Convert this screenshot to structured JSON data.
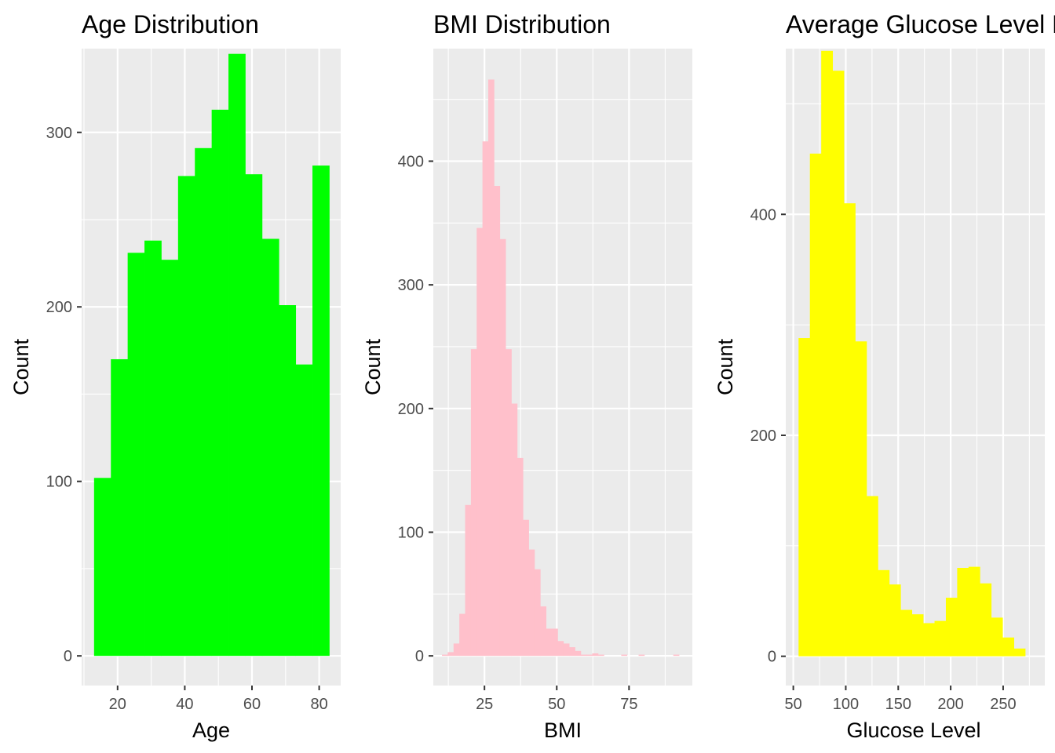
{
  "chart_data": [
    {
      "type": "bar",
      "title": "Age Distribution",
      "xlabel": "Age",
      "ylabel": "Count",
      "bar_color": "#00ff00",
      "panel_color": "#ebebeb",
      "grid_color": "#ffffff",
      "grid": true,
      "xlim": [
        9.3,
        86.4
      ],
      "ylim": [
        -17,
        348
      ],
      "x_ticks": [
        20,
        40,
        60,
        80
      ],
      "y_ticks": [
        0,
        100,
        200,
        300
      ],
      "x_tick_labels": [
        "20",
        "40",
        "60",
        "80"
      ],
      "y_tick_labels": [
        "0",
        "100",
        "200",
        "300"
      ],
      "bin_width": 5,
      "bins_start": [
        13,
        18,
        23,
        28,
        33,
        38,
        43,
        48,
        53,
        58,
        63,
        68,
        73,
        78
      ],
      "values": [
        102,
        170,
        231,
        238,
        227,
        275,
        291,
        313,
        345,
        276,
        239,
        201,
        167,
        281
      ]
    },
    {
      "type": "bar",
      "title": "BMI Distribution",
      "xlabel": "BMI",
      "ylabel": "Count",
      "bar_color": "#ffc0cb",
      "panel_color": "#ebebeb",
      "grid_color": "#ffffff",
      "grid": true,
      "xlim": [
        7.3,
        96.9
      ],
      "ylim": [
        -24,
        491
      ],
      "x_ticks": [
        25,
        50,
        75
      ],
      "y_ticks": [
        0,
        100,
        200,
        300,
        400
      ],
      "x_tick_labels": [
        "25",
        "50",
        "75"
      ],
      "y_tick_labels": [
        "0",
        "100",
        "200",
        "300",
        "400"
      ],
      "bin_width": 2,
      "bins_start": [
        10.3,
        12.3,
        14.3,
        16.3,
        18.3,
        20.3,
        22.3,
        24.3,
        26.3,
        28.3,
        30.3,
        32.3,
        34.3,
        36.3,
        38.3,
        40.3,
        42.3,
        44.3,
        46.3,
        48.3,
        50.3,
        52.3,
        54.3,
        56.3,
        58.3,
        60.3,
        62.3,
        64.3,
        66.3,
        68.3,
        70.3,
        72.3,
        74.3,
        76.3,
        78.3,
        80.3,
        82.3,
        84.3,
        86.3,
        88.3,
        90.3
      ],
      "values": [
        1,
        3,
        10,
        34,
        122,
        248,
        346,
        416,
        466,
        380,
        337,
        248,
        204,
        160,
        110,
        86,
        70,
        40,
        22,
        22,
        12,
        10,
        7,
        4,
        1,
        1,
        2,
        1,
        0,
        0,
        0,
        1,
        0,
        0,
        1,
        0,
        0,
        0,
        0,
        0,
        1
      ]
    },
    {
      "type": "bar",
      "title": "Average Glucose Level Distribution",
      "xlabel": "Glucose Level",
      "ylabel": "Count",
      "bar_color": "#ffff00",
      "panel_color": "#ebebeb",
      "grid_color": "#ffffff",
      "grid": true,
      "xlim": [
        42.8,
        289.7
      ],
      "ylim": [
        -26.5,
        550
      ],
      "x_ticks": [
        50,
        100,
        150,
        200,
        250
      ],
      "y_ticks": [
        0,
        200,
        400
      ],
      "x_tick_labels": [
        "50",
        "100",
        "150",
        "200",
        "250"
      ],
      "y_tick_labels": [
        "0",
        "200",
        "400"
      ],
      "bin_width": 10.8,
      "bins_start": [
        55,
        65.8,
        76.6,
        87.4,
        98.2,
        109,
        119.8,
        130.6,
        141.4,
        152.2,
        163,
        173.8,
        184.6,
        195.4,
        206.2,
        217,
        227.8,
        238.6,
        249.4,
        260.2
      ],
      "values": [
        288,
        455,
        548,
        530,
        410,
        285,
        145,
        78,
        65,
        42,
        38,
        30,
        32,
        53,
        80,
        81,
        66,
        35,
        17,
        7
      ]
    }
  ]
}
